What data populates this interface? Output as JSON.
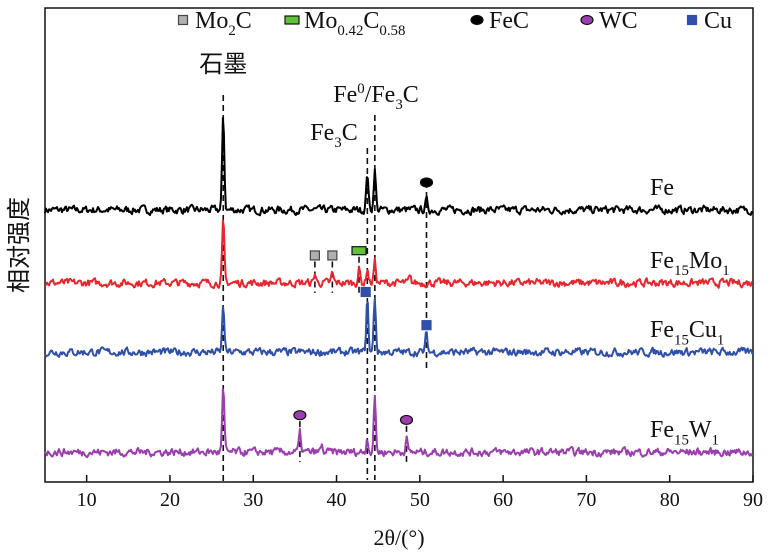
{
  "chart_data": {
    "type": "line",
    "title": "",
    "xlabel": "2θ/(°)",
    "ylabel": "相对强度",
    "xlim": [
      5,
      90
    ],
    "xticks": [
      10,
      20,
      30,
      40,
      50,
      60,
      70,
      80,
      90
    ],
    "yticks": [],
    "grid": false,
    "legend_position": "top",
    "legend": [
      {
        "label": "Mo2C",
        "base": "Mo",
        "sub1": "2",
        "mid": "C",
        "sub2": "",
        "marker": "square",
        "color": "#b0b0b0"
      },
      {
        "label": "Mo0.42C0.58",
        "base": "Mo",
        "sub1": "0.42",
        "mid": "C",
        "sub2": "0.58",
        "marker": "rect",
        "color": "#5ec23a"
      },
      {
        "label": "FeC",
        "base": "FeC",
        "sub1": "",
        "mid": "",
        "sub2": "",
        "marker": "ellipse",
        "color": "#000000"
      },
      {
        "label": "WC",
        "base": "WC",
        "sub1": "",
        "mid": "",
        "sub2": "",
        "marker": "ellipse",
        "color": "#9b3fae"
      },
      {
        "label": "Cu",
        "base": "Cu",
        "sub1": "",
        "mid": "",
        "sub2": "",
        "marker": "square",
        "color": "#2f4fa8"
      }
    ],
    "series": [
      {
        "name": "Fe",
        "label_base": "Fe",
        "label_sub1": "",
        "label_mid": "",
        "label_sub2": "",
        "color": "#000000",
        "baseline": 57.4,
        "peaks": [
          [
            26.4,
            20
          ],
          [
            43.7,
            8
          ],
          [
            44.6,
            8.5
          ],
          [
            50.8,
            2
          ]
        ]
      },
      {
        "name": "Fe15Mo1",
        "label_base": "Fe",
        "label_sub1": "15",
        "label_mid": "Mo",
        "label_sub2": "1",
        "color": "#e8262d",
        "baseline": 42,
        "peaks": [
          [
            26.4,
            13
          ],
          [
            37.4,
            2
          ],
          [
            39.5,
            2
          ],
          [
            42.7,
            3
          ],
          [
            43.7,
            3
          ],
          [
            44.6,
            4.5
          ],
          [
            48.8,
            1
          ]
        ]
      },
      {
        "name": "Fe15Cu1",
        "label_base": "Fe",
        "label_sub1": "15",
        "label_mid": "Cu",
        "label_sub2": "1",
        "color": "#2f4fa8",
        "baseline": 27.4,
        "peaks": [
          [
            26.4,
            10
          ],
          [
            43.7,
            11
          ],
          [
            44.6,
            11.5
          ],
          [
            50.8,
            4
          ]
        ]
      },
      {
        "name": "Fe15W1",
        "label_base": "Fe",
        "label_sub1": "15",
        "label_mid": "W",
        "label_sub2": "1",
        "color": "#9b3fae",
        "baseline": 6.3,
        "peaks": [
          [
            26.4,
            13.5
          ],
          [
            35.6,
            4
          ],
          [
            38.2,
            1.2
          ],
          [
            43.7,
            3
          ],
          [
            44.6,
            11.5
          ],
          [
            48.4,
            3
          ]
        ]
      }
    ],
    "annotations": [
      {
        "text": "石墨",
        "x": 26.4
      },
      {
        "text_base": "Fe",
        "sup": "0",
        "text_rest": "/Fe",
        "sub": "3",
        "tail": "C",
        "x": 44.6
      },
      {
        "text_base": "Fe",
        "sub": "3",
        "tail": "C",
        "x": 43.7
      }
    ],
    "phase_markers": [
      {
        "phase": "Mo2C",
        "series": "Fe15Mo1",
        "x": 37.4
      },
      {
        "phase": "Mo2C",
        "series": "Fe15Mo1",
        "x": 39.5
      },
      {
        "phase": "Mo0.42C0.58",
        "series": "Fe15Mo1",
        "x": 42.7
      },
      {
        "phase": "FeC",
        "series": "Fe",
        "x": 50.8
      },
      {
        "phase": "Cu",
        "series": "Fe15Cu1",
        "x": 43.5
      },
      {
        "phase": "Cu",
        "series": "Fe15Cu1",
        "x": 50.8
      },
      {
        "phase": "WC",
        "series": "Fe15W1",
        "x": 35.6
      },
      {
        "phase": "WC",
        "series": "Fe15W1",
        "x": 48.4
      }
    ]
  }
}
